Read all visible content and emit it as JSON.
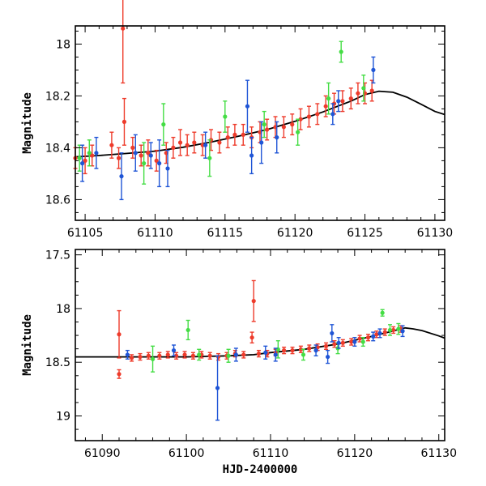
{
  "chart_data": [
    {
      "id": "top",
      "type": "scatter",
      "xlabel": "",
      "ylabel": "Magnitude",
      "xlim": [
        61104.3,
        61130.7
      ],
      "ylim": [
        17.93,
        18.68
      ],
      "y_inverted": true,
      "xticks": [
        61105,
        61110,
        61115,
        61120,
        61125,
        61130
      ],
      "yticks": [
        18.0,
        18.2,
        18.4,
        18.6
      ],
      "ytick_labels": [
        "18",
        "18.2",
        "18.4",
        "18.6"
      ],
      "colors": {
        "red": "#ee3b2b",
        "green": "#44dd44",
        "blue": "#1f55d6",
        "model": "#000000"
      },
      "model_curve": {
        "name": "model",
        "points": [
          [
            61104.3,
            18.435
          ],
          [
            61106,
            18.43
          ],
          [
            61108,
            18.422
          ],
          [
            61110,
            18.413
          ],
          [
            61112,
            18.398
          ],
          [
            61114,
            18.378
          ],
          [
            61116,
            18.355
          ],
          [
            61118,
            18.33
          ],
          [
            61120,
            18.298
          ],
          [
            61122,
            18.262
          ],
          [
            61124,
            18.22
          ],
          [
            61125,
            18.195
          ],
          [
            61126,
            18.182
          ],
          [
            61127,
            18.186
          ],
          [
            61128,
            18.205
          ],
          [
            61129,
            18.232
          ],
          [
            61130,
            18.26
          ],
          [
            61130.7,
            18.272
          ]
        ]
      },
      "series": [
        {
          "name": "red",
          "points": [
            [
              61104.3,
              18.44,
              0.04
            ],
            [
              61105.0,
              18.45,
              0.05
            ],
            [
              61105.5,
              18.43,
              0.04
            ],
            [
              61106.9,
              18.39,
              0.05
            ],
            [
              61107.4,
              18.44,
              0.04
            ],
            [
              61107.7,
              17.94,
              0.21
            ],
            [
              61107.8,
              18.3,
              0.09
            ],
            [
              61108.4,
              18.4,
              0.04
            ],
            [
              61109.0,
              18.43,
              0.04
            ],
            [
              61109.5,
              18.42,
              0.05
            ],
            [
              61110.1,
              18.45,
              0.04
            ],
            [
              61110.8,
              18.42,
              0.04
            ],
            [
              61111.3,
              18.4,
              0.04
            ],
            [
              61111.8,
              18.38,
              0.05
            ],
            [
              61112.3,
              18.39,
              0.04
            ],
            [
              61112.8,
              18.38,
              0.04
            ],
            [
              61113.4,
              18.39,
              0.04
            ],
            [
              61114.0,
              18.37,
              0.04
            ],
            [
              61114.6,
              18.38,
              0.04
            ],
            [
              61115.2,
              18.36,
              0.04
            ],
            [
              61115.7,
              18.35,
              0.04
            ],
            [
              61116.3,
              18.35,
              0.04
            ],
            [
              61116.9,
              18.36,
              0.04
            ],
            [
              61117.5,
              18.34,
              0.04
            ],
            [
              61118.0,
              18.33,
              0.04
            ],
            [
              61118.6,
              18.32,
              0.04
            ],
            [
              61119.2,
              18.32,
              0.04
            ],
            [
              61119.8,
              18.31,
              0.04
            ],
            [
              61120.4,
              18.29,
              0.04
            ],
            [
              61121.0,
              18.28,
              0.04
            ],
            [
              61121.6,
              18.27,
              0.04
            ],
            [
              61122.2,
              18.24,
              0.04
            ],
            [
              61122.8,
              18.23,
              0.04
            ],
            [
              61123.4,
              18.22,
              0.04
            ],
            [
              61124.0,
              18.21,
              0.04
            ],
            [
              61124.5,
              18.19,
              0.04
            ],
            [
              61125.0,
              18.19,
              0.04
            ],
            [
              61125.5,
              18.18,
              0.04
            ]
          ]
        },
        {
          "name": "green",
          "points": [
            [
              61104.6,
              18.44,
              0.05
            ],
            [
              61105.3,
              18.42,
              0.05
            ],
            [
              61109.2,
              18.46,
              0.08
            ],
            [
              61110.6,
              18.31,
              0.08
            ],
            [
              61113.9,
              18.44,
              0.07
            ],
            [
              61115.0,
              18.28,
              0.06
            ],
            [
              61117.8,
              18.31,
              0.05
            ],
            [
              61120.2,
              18.34,
              0.05
            ],
            [
              61122.4,
              18.21,
              0.06
            ],
            [
              61123.3,
              18.03,
              0.04
            ],
            [
              61124.9,
              18.17,
              0.05
            ]
          ]
        },
        {
          "name": "blue",
          "points": [
            [
              61104.8,
              18.46,
              0.07
            ],
            [
              61105.8,
              18.42,
              0.06
            ],
            [
              61107.6,
              18.51,
              0.09
            ],
            [
              61108.6,
              18.42,
              0.07
            ],
            [
              61109.7,
              18.43,
              0.05
            ],
            [
              61110.3,
              18.46,
              0.09
            ],
            [
              61110.9,
              18.48,
              0.07
            ],
            [
              61113.6,
              18.39,
              0.05
            ],
            [
              61116.6,
              18.24,
              0.1
            ],
            [
              61116.9,
              18.43,
              0.07
            ],
            [
              61117.6,
              18.38,
              0.08
            ],
            [
              61118.7,
              18.36,
              0.06
            ],
            [
              61122.7,
              18.27,
              0.04
            ],
            [
              61123.1,
              18.22,
              0.04
            ],
            [
              61125.6,
              18.1,
              0.05
            ]
          ]
        }
      ]
    },
    {
      "id": "bottom",
      "type": "scatter",
      "xlabel": "HJD-2400000",
      "ylabel": "Magnitude",
      "xlim": [
        61086.8,
        61130.7
      ],
      "ylim": [
        17.45,
        19.23
      ],
      "y_inverted": true,
      "xticks": [
        61090,
        61100,
        61110,
        61120,
        61130
      ],
      "yticks": [
        17.5,
        18.0,
        18.5,
        19.0
      ],
      "ytick_labels": [
        "17.5",
        "18",
        "18.5",
        "19"
      ],
      "colors": {
        "red": "#ee3b2b",
        "green": "#44dd44",
        "blue": "#1f55d6",
        "model": "#000000"
      },
      "model_curve": {
        "name": "model",
        "points": [
          [
            61086.8,
            18.45
          ],
          [
            61090,
            18.45
          ],
          [
            61095,
            18.45
          ],
          [
            61100,
            18.45
          ],
          [
            61105,
            18.44
          ],
          [
            61108,
            18.43
          ],
          [
            61110,
            18.41
          ],
          [
            61114,
            18.38
          ],
          [
            61118,
            18.33
          ],
          [
            61122,
            18.26
          ],
          [
            61124,
            18.22
          ],
          [
            61126,
            18.18
          ],
          [
            61127,
            18.19
          ],
          [
            61128,
            18.205
          ],
          [
            61130,
            18.255
          ],
          [
            61130.7,
            18.275
          ]
        ]
      },
      "series": [
        {
          "name": "red",
          "points": [
            [
              61092.0,
              18.24,
              0.22
            ],
            [
              61092.0,
              18.61,
              0.04
            ],
            [
              61093.5,
              18.46,
              0.03
            ],
            [
              61094.5,
              18.45,
              0.03
            ],
            [
              61095.5,
              18.44,
              0.03
            ],
            [
              61096.8,
              18.44,
              0.03
            ],
            [
              61097.8,
              18.43,
              0.03
            ],
            [
              61098.8,
              18.44,
              0.03
            ],
            [
              61099.8,
              18.43,
              0.03
            ],
            [
              61100.8,
              18.44,
              0.03
            ],
            [
              61101.8,
              18.43,
              0.03
            ],
            [
              61102.8,
              18.44,
              0.03
            ],
            [
              61103.8,
              18.45,
              0.03
            ],
            [
              61104.8,
              18.44,
              0.03
            ],
            [
              61105.8,
              18.42,
              0.03
            ],
            [
              61106.8,
              18.43,
              0.03
            ],
            [
              61107.8,
              18.27,
              0.05
            ],
            [
              61108.0,
              17.93,
              0.19
            ],
            [
              61108.6,
              18.42,
              0.03
            ],
            [
              61109.6,
              18.42,
              0.03
            ],
            [
              61110.6,
              18.41,
              0.03
            ],
            [
              61111.6,
              18.39,
              0.03
            ],
            [
              61112.6,
              18.39,
              0.03
            ],
            [
              61113.6,
              18.38,
              0.03
            ],
            [
              61114.6,
              18.37,
              0.03
            ],
            [
              61115.6,
              18.36,
              0.03
            ],
            [
              61116.6,
              18.35,
              0.03
            ],
            [
              61117.6,
              18.33,
              0.03
            ],
            [
              61118.6,
              18.32,
              0.03
            ],
            [
              61119.6,
              18.31,
              0.03
            ],
            [
              61120.6,
              18.28,
              0.03
            ],
            [
              61121.6,
              18.27,
              0.03
            ],
            [
              61122.6,
              18.24,
              0.03
            ],
            [
              61123.6,
              18.22,
              0.03
            ],
            [
              61124.6,
              18.2,
              0.03
            ],
            [
              61125.5,
              18.19,
              0.03
            ]
          ]
        },
        {
          "name": "green",
          "points": [
            [
              61096.0,
              18.47,
              0.12
            ],
            [
              61100.2,
              18.2,
              0.09
            ],
            [
              61101.5,
              18.43,
              0.05
            ],
            [
              61105.0,
              18.44,
              0.06
            ],
            [
              61110.9,
              18.38,
              0.08
            ],
            [
              61113.9,
              18.43,
              0.05
            ],
            [
              61118.0,
              18.37,
              0.05
            ],
            [
              61121.0,
              18.31,
              0.04
            ],
            [
              61123.3,
              18.04,
              0.03
            ],
            [
              61124.2,
              18.2,
              0.05
            ],
            [
              61125.2,
              18.19,
              0.05
            ]
          ]
        },
        {
          "name": "blue",
          "points": [
            [
              61093.0,
              18.43,
              0.04
            ],
            [
              61098.5,
              18.39,
              0.05
            ],
            [
              61103.7,
              18.74,
              0.3
            ],
            [
              61105.9,
              18.43,
              0.06
            ],
            [
              61109.4,
              18.41,
              0.06
            ],
            [
              61110.6,
              18.43,
              0.06
            ],
            [
              61115.4,
              18.39,
              0.05
            ],
            [
              61116.8,
              18.45,
              0.06
            ],
            [
              61117.3,
              18.23,
              0.08
            ],
            [
              61118.1,
              18.32,
              0.05
            ],
            [
              61120.0,
              18.31,
              0.04
            ],
            [
              61122.2,
              18.26,
              0.04
            ],
            [
              61123.0,
              18.23,
              0.04
            ],
            [
              61125.7,
              18.21,
              0.05
            ]
          ]
        }
      ]
    }
  ]
}
